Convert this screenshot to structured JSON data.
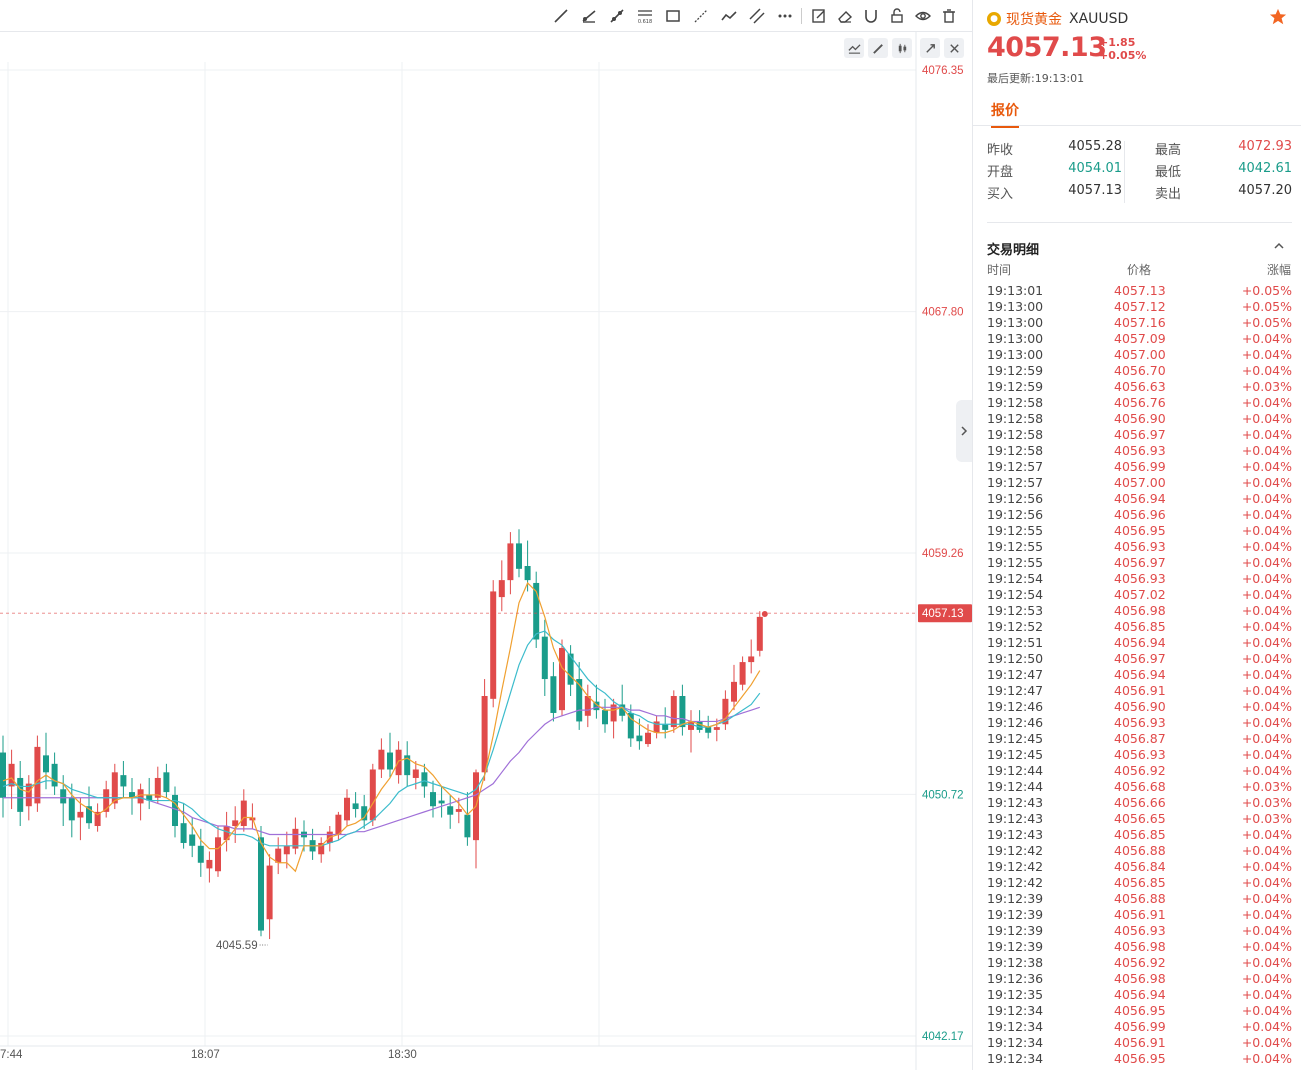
{
  "toolbar": {
    "tools": [
      "trend-line-icon",
      "ray-line-icon",
      "segment-line-icon",
      "fibonacci-icon",
      "rectangle-icon",
      "arrow-line-icon",
      "polyline-icon",
      "parallel-channel-icon",
      "more-icon",
      "edit-note-icon",
      "eraser-icon",
      "magnet-icon",
      "lock-icon",
      "eye-icon",
      "trash-icon"
    ],
    "fib_label": "0.618"
  },
  "chart": {
    "last_price_label": "4057.13",
    "low_marker_label": "4045.59",
    "colors": {
      "up": "#e04a4a",
      "down": "#1a9c8a",
      "ma5": "#f0a030",
      "ma10": "#3cbccc",
      "ma20": "#a070d8"
    }
  },
  "chart_data": {
    "type": "candlestick",
    "y_ticks": [
      "4076.35",
      "4067.80",
      "4059.26",
      "4050.72",
      "4042.17"
    ],
    "y_tick_colors": [
      "#e04a4a",
      "#e04a4a",
      "#e04a4a",
      "#1a9c8a",
      "#1a9c8a"
    ],
    "ylim": [
      4042.17,
      4076.35
    ],
    "x_ticks": [
      "7:44",
      "18:07",
      "18:30"
    ],
    "prev_close": 4055.28,
    "last_price": 4057.13,
    "candles": [
      [
        4052.2,
        4052.8,
        4049.9,
        4050.6
      ],
      [
        4051.0,
        4052.3,
        4050.2,
        4051.8
      ],
      [
        4051.3,
        4051.9,
        4049.6,
        4050.1
      ],
      [
        4050.3,
        4051.4,
        4049.8,
        4051.1
      ],
      [
        4050.4,
        4052.8,
        4050.1,
        4052.4
      ],
      [
        4052.1,
        4052.9,
        4050.9,
        4051.5
      ],
      [
        4051.8,
        4052.2,
        4050.7,
        4051.0
      ],
      [
        4050.9,
        4051.4,
        4049.6,
        4050.4
      ],
      [
        4050.6,
        4051.1,
        4049.2,
        4049.8
      ],
      [
        4049.9,
        4050.6,
        4049.1,
        4050.1
      ],
      [
        4050.3,
        4051.0,
        4049.5,
        4049.7
      ],
      [
        4049.6,
        4050.4,
        4049.4,
        4050.1
      ],
      [
        4050.1,
        4051.2,
        4049.9,
        4050.9
      ],
      [
        4050.4,
        4051.8,
        4050.2,
        4051.5
      ],
      [
        4051.4,
        4051.9,
        4050.6,
        4051.0
      ],
      [
        4050.8,
        4051.3,
        4050.0,
        4050.6
      ],
      [
        4050.4,
        4051.1,
        4049.8,
        4050.9
      ],
      [
        4050.7,
        4051.3,
        4050.2,
        4050.5
      ],
      [
        4050.6,
        4051.7,
        4050.4,
        4051.3
      ],
      [
        4051.5,
        4051.8,
        4050.6,
        4050.8
      ],
      [
        4050.7,
        4051.0,
        4049.2,
        4049.6
      ],
      [
        4049.7,
        4050.4,
        4048.8,
        4049.0
      ],
      [
        4049.3,
        4049.9,
        4048.5,
        4048.9
      ],
      [
        4048.9,
        4049.5,
        4047.8,
        4048.3
      ],
      [
        4048.1,
        4048.7,
        4047.6,
        4048.4
      ],
      [
        4048.0,
        4049.6,
        4047.8,
        4049.2
      ],
      [
        4049.1,
        4050.1,
        4048.7,
        4049.6
      ],
      [
        4049.6,
        4050.3,
        4049.0,
        4049.8
      ],
      [
        4049.6,
        4050.9,
        4049.4,
        4050.5
      ],
      [
        4049.8,
        4050.4,
        4049.5,
        4049.9
      ],
      [
        4049.2,
        4049.6,
        4045.7,
        4045.9
      ],
      [
        4046.3,
        4048.6,
        4045.6,
        4048.2
      ],
      [
        4048.3,
        4049.2,
        4047.9,
        4048.8
      ],
      [
        4048.6,
        4049.4,
        4048.1,
        4048.9
      ],
      [
        4048.8,
        4049.9,
        4048.6,
        4049.5
      ],
      [
        4049.4,
        4049.8,
        4048.7,
        4049.2
      ],
      [
        4049.1,
        4049.5,
        4048.4,
        4048.7
      ],
      [
        4048.6,
        4049.2,
        4048.3,
        4049.0
      ],
      [
        4049.0,
        4049.6,
        4048.7,
        4049.4
      ],
      [
        4049.3,
        4050.1,
        4049.1,
        4050.0
      ],
      [
        4049.8,
        4050.9,
        4049.6,
        4050.6
      ],
      [
        4050.4,
        4050.8,
        4049.9,
        4050.2
      ],
      [
        4050.3,
        4050.7,
        4049.5,
        4049.8
      ],
      [
        4049.8,
        4051.8,
        4049.6,
        4051.6
      ],
      [
        4051.6,
        4052.7,
        4051.3,
        4052.3
      ],
      [
        4052.2,
        4052.9,
        4051.3,
        4051.6
      ],
      [
        4051.4,
        4052.6,
        4051.1,
        4052.3
      ],
      [
        4052.1,
        4052.6,
        4051.0,
        4051.4
      ],
      [
        4051.3,
        4051.9,
        4050.9,
        4051.6
      ],
      [
        4051.5,
        4051.8,
        4050.6,
        4051.0
      ],
      [
        4050.8,
        4051.2,
        4049.9,
        4050.3
      ],
      [
        4050.5,
        4051.0,
        4049.9,
        4050.4
      ],
      [
        4050.3,
        4050.7,
        4049.5,
        4050.0
      ],
      [
        4050.1,
        4050.6,
        4049.7,
        4050.2
      ],
      [
        4050.0,
        4050.8,
        4048.9,
        4049.2
      ],
      [
        4049.1,
        4051.6,
        4048.1,
        4051.5
      ],
      [
        4051.5,
        4054.8,
        4051.2,
        4054.2
      ],
      [
        4054.1,
        4058.3,
        4053.8,
        4057.9
      ],
      [
        4057.7,
        4059.0,
        4057.2,
        4058.3
      ],
      [
        4058.3,
        4060.0,
        4057.8,
        4059.6
      ],
      [
        4059.6,
        4060.1,
        4058.4,
        4058.7
      ],
      [
        4058.8,
        4059.7,
        4057.9,
        4058.3
      ],
      [
        4058.2,
        4058.6,
        4055.9,
        4056.2
      ],
      [
        4056.3,
        4056.9,
        4054.2,
        4054.8
      ],
      [
        4054.9,
        4055.4,
        4053.3,
        4053.6
      ],
      [
        4053.7,
        4056.2,
        4053.5,
        4055.9
      ],
      [
        4055.7,
        4056.0,
        4054.2,
        4054.6
      ],
      [
        4054.8,
        4055.4,
        4053.0,
        4053.3
      ],
      [
        4053.5,
        4054.6,
        4053.1,
        4054.2
      ],
      [
        4054.0,
        4054.6,
        4053.4,
        4053.7
      ],
      [
        4053.7,
        4054.1,
        4052.9,
        4053.2
      ],
      [
        4053.3,
        4054.1,
        4052.7,
        4053.9
      ],
      [
        4053.9,
        4054.6,
        4053.3,
        4053.5
      ],
      [
        4053.6,
        4053.9,
        4052.4,
        4052.7
      ],
      [
        4052.8,
        4053.4,
        4052.3,
        4052.6
      ],
      [
        4052.5,
        4053.2,
        4052.4,
        4052.9
      ],
      [
        4052.9,
        4053.5,
        4052.7,
        4053.3
      ],
      [
        4053.2,
        4053.8,
        4052.7,
        4053.0
      ],
      [
        4053.1,
        4054.4,
        4052.9,
        4054.2
      ],
      [
        4054.2,
        4054.6,
        4052.8,
        4053.1
      ],
      [
        4053.0,
        4053.7,
        4052.2,
        4053.3
      ],
      [
        4053.3,
        4053.7,
        4052.9,
        4053.0
      ],
      [
        4053.1,
        4053.5,
        4052.7,
        4052.9
      ],
      [
        4053.0,
        4053.4,
        4052.6,
        4053.1
      ],
      [
        4053.2,
        4054.4,
        4053.0,
        4054.1
      ],
      [
        4054.0,
        4055.3,
        4053.7,
        4054.7
      ],
      [
        4054.6,
        4055.6,
        4054.4,
        4055.4
      ],
      [
        4055.4,
        4056.2,
        4055.0,
        4055.6
      ],
      [
        4055.8,
        4057.2,
        4055.6,
        4057.0
      ]
    ],
    "ma5": [
      4051.2,
      4051.3,
      4050.9,
      4050.8,
      4051.2,
      4051.4,
      4051.2,
      4051.1,
      4050.7,
      4050.4,
      4050.2,
      4050.0,
      4050.2,
      4050.5,
      4050.6,
      4050.6,
      4050.7,
      4050.7,
      4050.7,
      4050.6,
      4050.4,
      4050.0,
      4049.6,
      4049.1,
      4048.8,
      4048.8,
      4049.1,
      4049.5,
      4049.9,
      4049.9,
      4049.0,
      4048.5,
      4048.3,
      4048.3,
      4048.0,
      4048.9,
      4048.9,
      4048.9,
      4049.2,
      4049.3,
      4049.6,
      4049.7,
      4049.9,
      4050.4,
      4050.9,
      4051.3,
      4051.9,
      4052.0,
      4051.8,
      4051.7,
      4051.4,
      4051.0,
      4050.7,
      4050.4,
      4050.0,
      4050.3,
      4051.4,
      4052.8,
      4054.4,
      4055.9,
      4057.5,
      4058.2,
      4057.9,
      4057.0,
      4055.9,
      4055.2,
      4054.9,
      4054.6,
      4054.2,
      4053.9,
      4053.7,
      4053.7,
      4053.8,
      4053.4,
      4053.2,
      4053.0,
      4052.9,
      4052.9,
      4053.0,
      4053.2,
      4053.3,
      4053.2,
      4053.1,
      4053.2,
      4053.4,
      4053.8,
      4054.2,
      4054.6,
      4055.1
    ],
    "ma10": [
      4051.0,
      4051.1,
      4051.0,
      4051.0,
      4051.1,
      4051.2,
      4051.2,
      4051.1,
      4050.9,
      4050.8,
      4050.7,
      4050.6,
      4050.6,
      4050.6,
      4050.6,
      4050.6,
      4050.6,
      4050.5,
      4050.5,
      4050.5,
      4050.5,
      4050.4,
      4050.2,
      4049.9,
      4049.7,
      4049.5,
      4049.4,
      4049.3,
      4049.3,
      4049.2,
      4049.0,
      4048.9,
      4048.9,
      4048.9,
      4048.9,
      4048.9,
      4048.9,
      4048.9,
      4049.0,
      4049.1,
      4049.3,
      4049.4,
      4049.6,
      4049.8,
      4050.1,
      4050.4,
      4050.8,
      4051.0,
      4051.1,
      4051.2,
      4051.1,
      4051.0,
      4050.9,
      4050.8,
      4050.7,
      4050.9,
      4051.4,
      4052.3,
      4053.3,
      4054.3,
      4055.3,
      4056.0,
      4056.4,
      4056.5,
      4056.2,
      4056.0,
      4055.6,
      4055.2,
      4054.8,
      4054.5,
      4054.3,
      4054.0,
      4053.8,
      4053.6,
      4053.5,
      4053.3,
      4053.2,
      4053.2,
      4053.2,
      4053.2,
      4053.2,
      4053.1,
      4053.1,
      4053.2,
      4053.3,
      4053.5,
      4053.7,
      4053.9,
      4054.3
    ],
    "ma20": [
      4050.6,
      4050.6,
      4050.6,
      4050.6,
      4050.6,
      4050.6,
      4050.6,
      4050.6,
      4050.6,
      4050.6,
      4050.6,
      4050.6,
      4050.6,
      4050.6,
      4050.6,
      4050.6,
      4050.6,
      4050.5,
      4050.4,
      4050.3,
      4050.2,
      4050.1,
      4049.9,
      4049.8,
      4049.7,
      4049.6,
      4049.6,
      4049.5,
      4049.5,
      4049.5,
      4049.4,
      4049.3,
      4049.3,
      4049.3,
      4049.3,
      4049.3,
      4049.3,
      4049.3,
      4049.3,
      4049.3,
      4049.3,
      4049.4,
      4049.4,
      4049.5,
      4049.6,
      4049.7,
      4049.8,
      4049.9,
      4050.0,
      4050.1,
      4050.2,
      4050.3,
      4050.4,
      4050.5,
      4050.6,
      4050.7,
      4050.9,
      4051.1,
      4051.5,
      4051.9,
      4052.2,
      4052.6,
      4052.9,
      4053.2,
      4053.4,
      4053.5,
      4053.6,
      4053.7,
      4053.7,
      4053.8,
      4053.8,
      4053.8,
      4053.8,
      4053.7,
      4053.7,
      4053.6,
      4053.5,
      4053.5,
      4053.4,
      4053.4,
      4053.3,
      4053.3,
      4053.3,
      4053.3,
      4053.4,
      4053.5,
      4053.6,
      4053.7,
      4053.8
    ]
  },
  "panel": {
    "symbol_name": "现货黄金",
    "symbol_code": "XAUUSD",
    "price": "4057.13",
    "change": "+1.85",
    "change_pct": "+0.05%",
    "updated": "最后更新:19:13:01",
    "tab": "报价",
    "quote": [
      {
        "l1": "昨收",
        "v1": "4055.28",
        "c1": "",
        "l2": "最高",
        "v2": "4072.93",
        "c2": "red"
      },
      {
        "l1": "开盘",
        "v1": "4054.01",
        "c1": "green",
        "l2": "最低",
        "v2": "4042.61",
        "c2": "green"
      },
      {
        "l1": "买入",
        "v1": "4057.13",
        "c1": "",
        "l2": "卖出",
        "v2": "4057.20",
        "c2": ""
      }
    ],
    "detail_title": "交易明细",
    "col_time": "时间",
    "col_price": "价格",
    "col_change": "涨幅",
    "trades": [
      [
        "19:13:01",
        "4057.13",
        "+0.05%"
      ],
      [
        "19:13:00",
        "4057.12",
        "+0.05%"
      ],
      [
        "19:13:00",
        "4057.16",
        "+0.05%"
      ],
      [
        "19:13:00",
        "4057.09",
        "+0.04%"
      ],
      [
        "19:13:00",
        "4057.00",
        "+0.04%"
      ],
      [
        "19:12:59",
        "4056.70",
        "+0.04%"
      ],
      [
        "19:12:59",
        "4056.63",
        "+0.03%"
      ],
      [
        "19:12:58",
        "4056.76",
        "+0.04%"
      ],
      [
        "19:12:58",
        "4056.90",
        "+0.04%"
      ],
      [
        "19:12:58",
        "4056.97",
        "+0.04%"
      ],
      [
        "19:12:58",
        "4056.93",
        "+0.04%"
      ],
      [
        "19:12:57",
        "4056.99",
        "+0.04%"
      ],
      [
        "19:12:57",
        "4057.00",
        "+0.04%"
      ],
      [
        "19:12:56",
        "4056.94",
        "+0.04%"
      ],
      [
        "19:12:56",
        "4056.96",
        "+0.04%"
      ],
      [
        "19:12:55",
        "4056.95",
        "+0.04%"
      ],
      [
        "19:12:55",
        "4056.93",
        "+0.04%"
      ],
      [
        "19:12:55",
        "4056.97",
        "+0.04%"
      ],
      [
        "19:12:54",
        "4056.93",
        "+0.04%"
      ],
      [
        "19:12:54",
        "4057.02",
        "+0.04%"
      ],
      [
        "19:12:53",
        "4056.98",
        "+0.04%"
      ],
      [
        "19:12:52",
        "4056.85",
        "+0.04%"
      ],
      [
        "19:12:51",
        "4056.94",
        "+0.04%"
      ],
      [
        "19:12:50",
        "4056.97",
        "+0.04%"
      ],
      [
        "19:12:47",
        "4056.94",
        "+0.04%"
      ],
      [
        "19:12:47",
        "4056.91",
        "+0.04%"
      ],
      [
        "19:12:46",
        "4056.90",
        "+0.04%"
      ],
      [
        "19:12:46",
        "4056.93",
        "+0.04%"
      ],
      [
        "19:12:45",
        "4056.87",
        "+0.04%"
      ],
      [
        "19:12:45",
        "4056.93",
        "+0.04%"
      ],
      [
        "19:12:44",
        "4056.92",
        "+0.04%"
      ],
      [
        "19:12:44",
        "4056.68",
        "+0.03%"
      ],
      [
        "19:12:43",
        "4056.66",
        "+0.03%"
      ],
      [
        "19:12:43",
        "4056.65",
        "+0.03%"
      ],
      [
        "19:12:43",
        "4056.85",
        "+0.04%"
      ],
      [
        "19:12:42",
        "4056.88",
        "+0.04%"
      ],
      [
        "19:12:42",
        "4056.84",
        "+0.04%"
      ],
      [
        "19:12:42",
        "4056.85",
        "+0.04%"
      ],
      [
        "19:12:39",
        "4056.88",
        "+0.04%"
      ],
      [
        "19:12:39",
        "4056.91",
        "+0.04%"
      ],
      [
        "19:12:39",
        "4056.93",
        "+0.04%"
      ],
      [
        "19:12:39",
        "4056.98",
        "+0.04%"
      ],
      [
        "19:12:38",
        "4056.92",
        "+0.04%"
      ],
      [
        "19:12:36",
        "4056.98",
        "+0.04%"
      ],
      [
        "19:12:35",
        "4056.94",
        "+0.04%"
      ],
      [
        "19:12:34",
        "4056.95",
        "+0.04%"
      ],
      [
        "19:12:34",
        "4056.99",
        "+0.04%"
      ],
      [
        "19:12:34",
        "4056.91",
        "+0.04%"
      ],
      [
        "19:12:34",
        "4056.95",
        "+0.04%"
      ]
    ]
  }
}
